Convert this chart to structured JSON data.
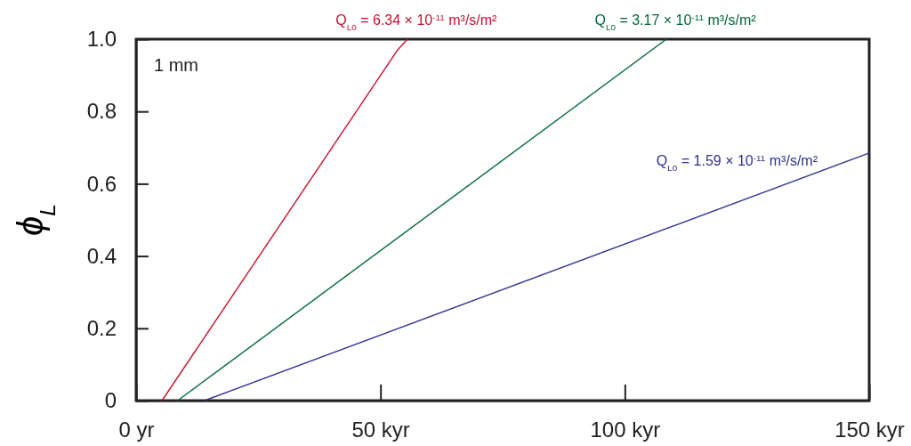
{
  "chart_data": {
    "type": "line",
    "xlabel": null,
    "ylabel": "ϕ$_{L}$",
    "xlim": [
      0,
      150
    ],
    "ylim": [
      0,
      1.0
    ],
    "xticks": [
      {
        "value": 0,
        "label": "0 yr"
      },
      {
        "value": 50,
        "label": "50 kyr"
      },
      {
        "value": 100,
        "label": "100 kyr"
      },
      {
        "value": 150,
        "label": "150 kyr"
      }
    ],
    "yticks": [
      0,
      0.2,
      0.4,
      0.6,
      0.8,
      {
        "value": 1.0,
        "label": "1.0"
      }
    ],
    "grid": false,
    "marker": "none",
    "line_style": "solid",
    "annotations": [
      "1 mm"
    ],
    "series": [
      {
        "name": "Q$_{L0}$ = 6.34 × 10$^{-11}$ m³/s/m²",
        "color": "#c8102e",
        "x": [
          5.3,
          53.5,
          55.5
        ],
        "values": [
          0,
          0.97,
          1.0
        ]
      },
      {
        "name": "Q$_{L0}$ = 3.17 × 10$^{-11}$ m³/s/m²",
        "color": "#006837",
        "x": [
          8.5,
          108.5
        ],
        "values": [
          0,
          1.0
        ]
      },
      {
        "name": "Q$_{L0}$ = 1.59 × 10$^{-11}$ m³/s/m²",
        "color": "#2e3192",
        "x": [
          14,
          150
        ],
        "values": [
          0,
          0.685
        ]
      }
    ]
  }
}
